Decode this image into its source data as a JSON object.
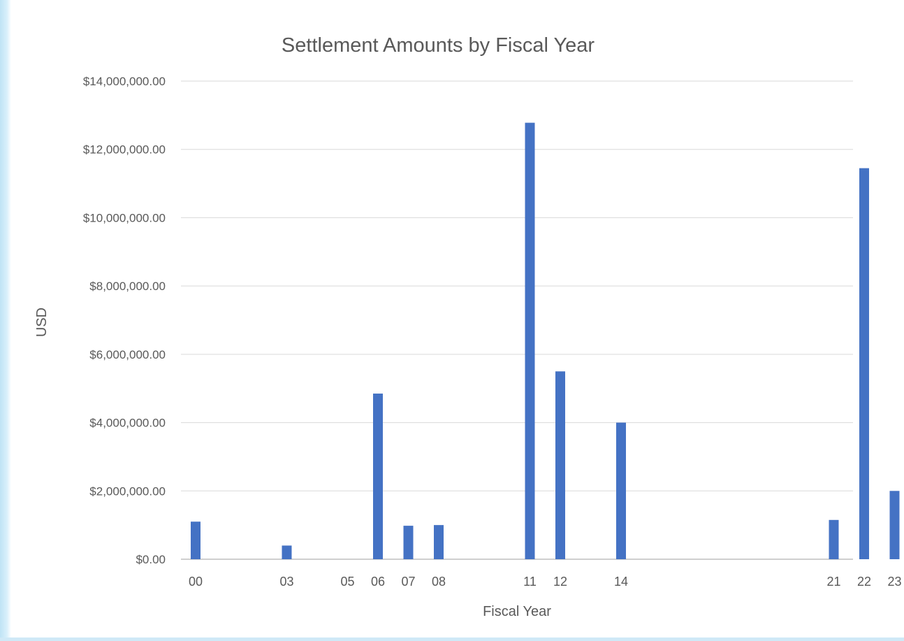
{
  "chart_data": {
    "type": "bar",
    "title": "Settlement Amounts by Fiscal Year",
    "xlabel": "Fiscal Year",
    "ylabel": "USD",
    "ylim": [
      0,
      14000000
    ],
    "ytick_labels": [
      "$0.00",
      "$2,000,000.00",
      "$4,000,000.00",
      "$6,000,000.00",
      "$8,000,000.00",
      "$10,000,000.00",
      "$12,000,000.00",
      "$14,000,000.00"
    ],
    "ytick_values": [
      0,
      2000000,
      4000000,
      6000000,
      8000000,
      10000000,
      12000000,
      14000000
    ],
    "x": [
      0,
      3,
      5,
      6,
      7,
      8,
      11,
      12,
      14,
      21,
      22,
      23
    ],
    "categories": [
      "00",
      "03",
      "05",
      "06",
      "07",
      "08",
      "11",
      "12",
      "14",
      "21",
      "22",
      "23"
    ],
    "values": [
      1100000,
      400000,
      0,
      4850000,
      980000,
      1000000,
      12780000,
      5500000,
      4000000,
      1150000,
      11450000,
      2000000
    ],
    "bar_color": "#4472c4",
    "grid": true,
    "legend": "none"
  }
}
